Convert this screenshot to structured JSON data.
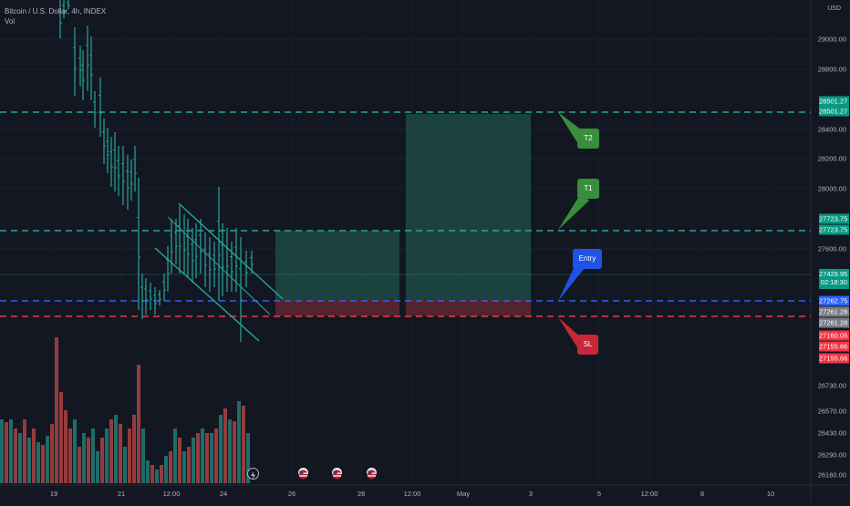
{
  "header": {
    "symbol": "Bitcoin / U.S. Dollar, 4h, INDEX",
    "indicator": "Vol"
  },
  "price_axis": {
    "currency": "USD",
    "ticks": [
      {
        "value": 29000,
        "label": "29000.00"
      },
      {
        "value": 28800,
        "label": "28800.00"
      },
      {
        "value": 28400,
        "label": "28400.00"
      },
      {
        "value": 28200,
        "label": "28200.00"
      },
      {
        "value": 28000,
        "label": "28000.00"
      },
      {
        "value": 27600,
        "label": "27600.00"
      },
      {
        "value": 26730,
        "label": "26730.00"
      },
      {
        "value": 26570,
        "label": "26570.00"
      },
      {
        "value": 26430,
        "label": "26430.00"
      },
      {
        "value": 26290,
        "label": "26290.00"
      },
      {
        "value": 26160,
        "label": "26160.00"
      }
    ],
    "tags": [
      {
        "label": "28501.27",
        "color": "#089981"
      },
      {
        "label": "28501.27",
        "color": "#089981"
      },
      {
        "label": "27723.75",
        "color": "#089981"
      },
      {
        "label": "27723.75",
        "color": "#089981"
      },
      {
        "label": "27429.95",
        "sublabel": "02:18:30",
        "color": "#089981"
      },
      {
        "label": "27262.75",
        "color": "#2962ff"
      },
      {
        "label": "27261.28",
        "color": "#787b86"
      },
      {
        "label": "27261.28",
        "color": "#787b86"
      },
      {
        "label": "27160.05",
        "color": "#f23645"
      },
      {
        "label": "27155.66",
        "color": "#f23645"
      },
      {
        "label": "27155.66",
        "color": "#f23645"
      }
    ]
  },
  "time_axis": {
    "ticks": [
      "19",
      "21",
      "12:00",
      "24",
      "26",
      "28",
      "12:00",
      "May",
      "3",
      "5",
      "12:00",
      "8",
      "10"
    ]
  },
  "annotations": [
    {
      "label": "T2",
      "color": "#2e7d32"
    },
    {
      "label": "T1",
      "color": "#2e7d32"
    },
    {
      "label": "Entry",
      "color": "#1e53e5"
    },
    {
      "label": "SL",
      "color": "#c2185b"
    }
  ],
  "levels": {
    "t2": 28501.27,
    "t1": 27723.75,
    "entry": 27262.75,
    "sl": 27155.66,
    "last": 27429.95
  },
  "colors": {
    "background": "#131722",
    "up": "#26a69a",
    "down": "#ef5350",
    "target_zone": "#1f4a44",
    "stop_zone": "#5b2630",
    "t_line": "#26a69a",
    "entry_line": "#2962ff",
    "sl_line": "#f23645"
  },
  "events": [
    "lightning-icon",
    "flag-icon",
    "flag-icon",
    "flag-icon"
  ]
}
